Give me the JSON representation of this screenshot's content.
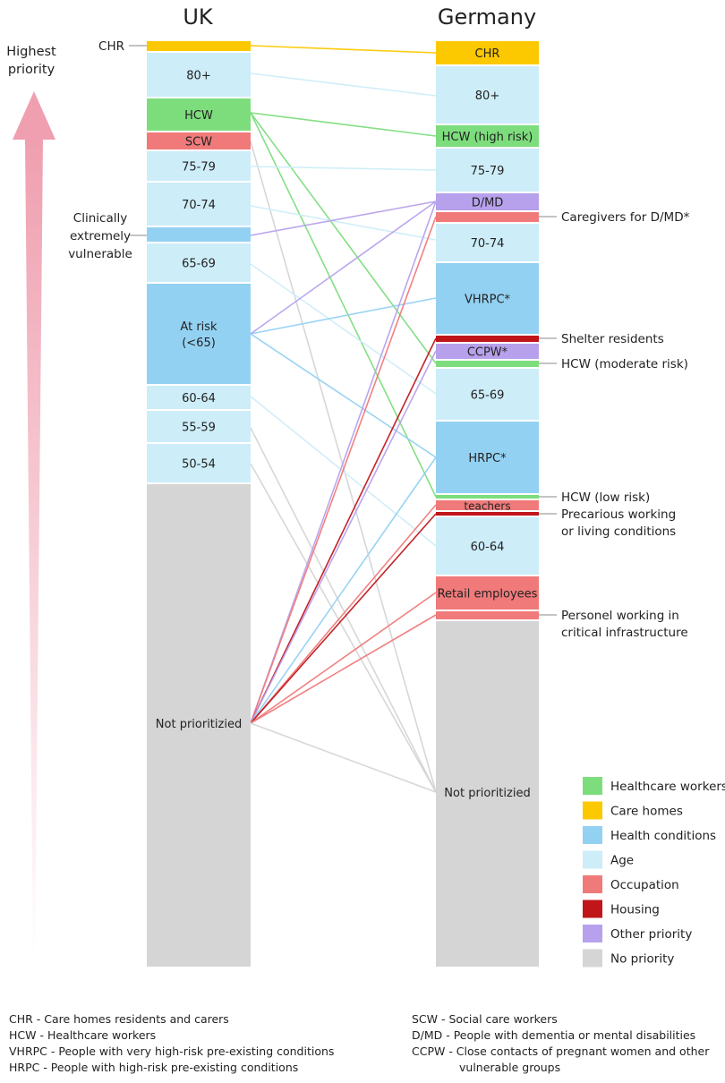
{
  "titles": {
    "uk": "UK",
    "germany": "Germany"
  },
  "priority_label": [
    "Highest",
    "priority"
  ],
  "categories": {
    "healthcare": {
      "label": "Healthcare workers",
      "color": "#7ddd7d"
    },
    "care": {
      "label": "Care homes",
      "color": "#fcc800"
    },
    "health": {
      "label": "Health conditions",
      "color": "#93d1f2"
    },
    "age": {
      "label": "Age",
      "color": "#cdedf8"
    },
    "occupation": {
      "label": "Occupation",
      "color": "#f07a7a"
    },
    "housing": {
      "label": "Housing",
      "color": "#c0161a"
    },
    "other": {
      "label": "Other priority",
      "color": "#b7a1ec"
    },
    "none": {
      "label": "No priority",
      "color": "#d5d5d5"
    }
  },
  "legend_order": [
    "healthcare",
    "care",
    "health",
    "age",
    "occupation",
    "housing",
    "other",
    "none"
  ],
  "uk_groups": [
    {
      "id": "CHR",
      "label": "",
      "cat": "care"
    },
    {
      "id": "80+",
      "label": "80+",
      "cat": "age"
    },
    {
      "id": "HCW",
      "label": "HCW",
      "cat": "healthcare"
    },
    {
      "id": "SCW",
      "label": "SCW",
      "cat": "occupation"
    },
    {
      "id": "75-79",
      "label": "75-79",
      "cat": "age"
    },
    {
      "id": "70-74",
      "label": "70-74",
      "cat": "age"
    },
    {
      "id": "CEV",
      "label": "",
      "cat": "health"
    },
    {
      "id": "65-69",
      "label": "65-69",
      "cat": "age"
    },
    {
      "id": "AtRisk",
      "label": "At risk|(<65)",
      "cat": "health"
    },
    {
      "id": "60-64",
      "label": "60-64",
      "cat": "age"
    },
    {
      "id": "55-59",
      "label": "55-59",
      "cat": "age"
    },
    {
      "id": "50-54",
      "label": "50-54",
      "cat": "age"
    },
    {
      "id": "NP",
      "label": "Not prioritizied",
      "cat": "none"
    }
  ],
  "de_groups": [
    {
      "id": "CHR",
      "label": "CHR",
      "cat": "care"
    },
    {
      "id": "80+",
      "label": "80+",
      "cat": "age"
    },
    {
      "id": "HCWhigh",
      "label": "HCW (high risk)",
      "cat": "healthcare"
    },
    {
      "id": "75-79",
      "label": "75-79",
      "cat": "age"
    },
    {
      "id": "DMD",
      "label": "D/MD",
      "cat": "other"
    },
    {
      "id": "CareDMD",
      "label": "",
      "cat": "occupation"
    },
    {
      "id": "70-74",
      "label": "70-74",
      "cat": "age"
    },
    {
      "id": "VHRPC",
      "label": "VHRPC*",
      "cat": "health"
    },
    {
      "id": "Shelter",
      "label": "",
      "cat": "housing"
    },
    {
      "id": "CCPW",
      "label": "CCPW*",
      "cat": "other"
    },
    {
      "id": "HCWmod",
      "label": "",
      "cat": "healthcare"
    },
    {
      "id": "65-69",
      "label": "65-69",
      "cat": "age"
    },
    {
      "id": "HRPC",
      "label": "HRPC*",
      "cat": "health"
    },
    {
      "id": "HCWlow",
      "label": "",
      "cat": "healthcare"
    },
    {
      "id": "Teachers",
      "label": "teachers",
      "cat": "occupation"
    },
    {
      "id": "Precarious",
      "label": "",
      "cat": "housing"
    },
    {
      "id": "60-64",
      "label": "60-64",
      "cat": "age"
    },
    {
      "id": "Retail",
      "label": "Retail employees",
      "cat": "occupation"
    },
    {
      "id": "Infra",
      "label": "",
      "cat": "occupation"
    },
    {
      "id": "NP",
      "label": "Not prioritizied",
      "cat": "none"
    }
  ],
  "uk_side_labels": [
    {
      "target": "CHR",
      "lines": [
        "CHR"
      ]
    },
    {
      "target": "CEV",
      "lines": [
        "Clinically",
        "extremely",
        "vulnerable"
      ]
    }
  ],
  "de_side_labels": [
    {
      "target": "CareDMD",
      "lines": [
        "Caregivers for D/MD*"
      ]
    },
    {
      "target": "Shelter",
      "lines": [
        "Shelter residents"
      ]
    },
    {
      "target": "HCWmod",
      "lines": [
        "HCW (moderate risk)"
      ]
    },
    {
      "target": "HCWlow",
      "lines": [
        "HCW (low risk)"
      ]
    },
    {
      "target": "Precarious",
      "lines": [
        "Precarious working",
        "or living conditions"
      ]
    },
    {
      "target": "Infra",
      "lines": [
        "Personel working in",
        "critical infrastructure"
      ]
    }
  ],
  "links": [
    {
      "from": "CHR",
      "to": "CHR",
      "cat": "care"
    },
    {
      "from": "80+",
      "to": "80+",
      "cat": "age"
    },
    {
      "from": "HCW",
      "to": "HCWhigh",
      "cat": "healthcare"
    },
    {
      "from": "HCW",
      "to": "HCWmod",
      "cat": "healthcare"
    },
    {
      "from": "HCW",
      "to": "HCWlow",
      "cat": "healthcare"
    },
    {
      "from": "SCW",
      "to": "NP",
      "cat": "none"
    },
    {
      "from": "75-79",
      "to": "75-79",
      "cat": "age"
    },
    {
      "from": "70-74",
      "to": "70-74",
      "cat": "age"
    },
    {
      "from": "CEV",
      "to": "DMD",
      "cat": "other"
    },
    {
      "from": "65-69",
      "to": "65-69",
      "cat": "age"
    },
    {
      "from": "AtRisk",
      "to": "VHRPC",
      "cat": "health"
    },
    {
      "from": "AtRisk",
      "to": "HRPC",
      "cat": "health"
    },
    {
      "from": "AtRisk",
      "to": "DMD",
      "cat": "other"
    },
    {
      "from": "60-64",
      "to": "60-64",
      "cat": "age"
    },
    {
      "from": "55-59",
      "to": "NP",
      "cat": "none"
    },
    {
      "from": "50-54",
      "to": "NP",
      "cat": "none"
    },
    {
      "from": "NP",
      "to": "DMD",
      "cat": "other"
    },
    {
      "from": "NP",
      "to": "CareDMD",
      "cat": "occupation"
    },
    {
      "from": "NP",
      "to": "Shelter",
      "cat": "housing"
    },
    {
      "from": "NP",
      "to": "CCPW",
      "cat": "other"
    },
    {
      "from": "NP",
      "to": "HRPC",
      "cat": "health"
    },
    {
      "from": "NP",
      "to": "Teachers",
      "cat": "occupation"
    },
    {
      "from": "NP",
      "to": "Precarious",
      "cat": "housing"
    },
    {
      "from": "NP",
      "to": "Retail",
      "cat": "occupation"
    },
    {
      "from": "NP",
      "to": "Infra",
      "cat": "occupation"
    },
    {
      "from": "NP",
      "to": "NP",
      "cat": "none"
    }
  ],
  "footnotes": {
    "left": [
      "CHR - Care homes residents and carers",
      "HCW - Healthcare workers",
      "VHRPC - People with very high-risk pre-existing conditions",
      "HRPC - People with high-risk pre-existing conditions"
    ],
    "right": [
      "SCW - Social care workers",
      "D/MD - People with dementia or mental disabilities",
      "CCPW - Close contacts of pregnant women and other",
      "vulnerable groups"
    ]
  }
}
